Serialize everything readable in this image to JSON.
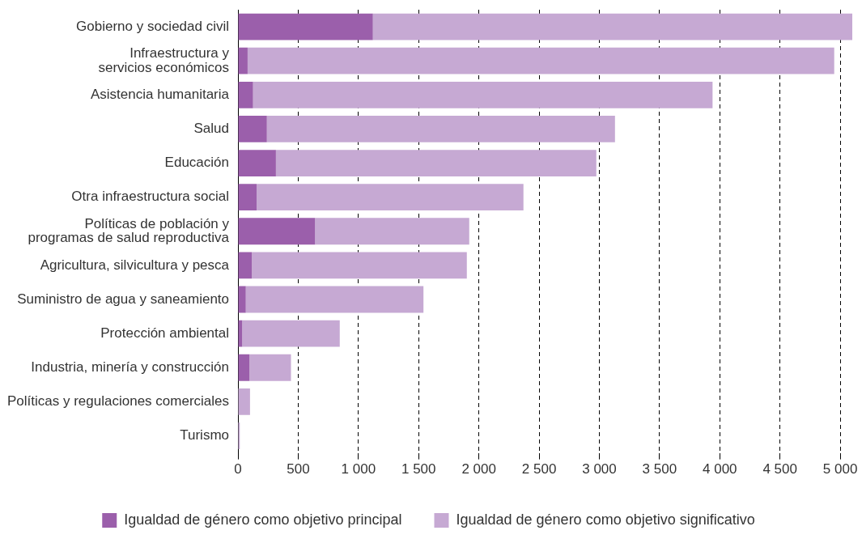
{
  "chart_data": {
    "type": "bar",
    "orientation": "horizontal",
    "stacked": true,
    "categories": [
      "Gobierno y sociedad civil",
      "Infraestructura y servicios económicos",
      "Asistencia humanitaria",
      "Salud",
      "Educación",
      "Otra infraestructura social",
      "Políticas de población y programas de salud reproductiva",
      "Agricultura, silvicultura y pesca",
      "Suministro de agua y saneamiento",
      "Protección ambiental",
      "Industria, minería y construcción",
      "Políticas y regulaciones comerciales",
      "Turismo"
    ],
    "series": [
      {
        "name": "Igualdad de género como objetivo principal",
        "color": "#9b5fab",
        "values": [
          1120,
          80,
          125,
          240,
          315,
          155,
          640,
          115,
          65,
          35,
          95,
          0,
          0
        ]
      },
      {
        "name": "Igualdad de género como objetivo significativo",
        "color": "#c6a9d3",
        "values": [
          3980,
          4870,
          3815,
          2890,
          2660,
          2215,
          1280,
          1785,
          1475,
          810,
          345,
          100,
          15
        ]
      }
    ],
    "xlim": [
      0,
      5100
    ],
    "xticks": [
      0,
      500,
      {
        "value": 1000,
        "label": "1 000"
      },
      {
        "value": 1500,
        "label": "1 500"
      },
      {
        "value": 2000,
        "label": "2 000"
      },
      {
        "value": 2500,
        "label": "2 500"
      },
      {
        "value": 3000,
        "label": "3 000"
      },
      {
        "value": 3500,
        "label": "3 500"
      },
      {
        "value": 4000,
        "label": "4 000"
      },
      {
        "value": 4500,
        "label": "4 500"
      },
      {
        "value": 5000,
        "label": "5 000"
      }
    ],
    "grid": "x",
    "legend": "bottom"
  }
}
